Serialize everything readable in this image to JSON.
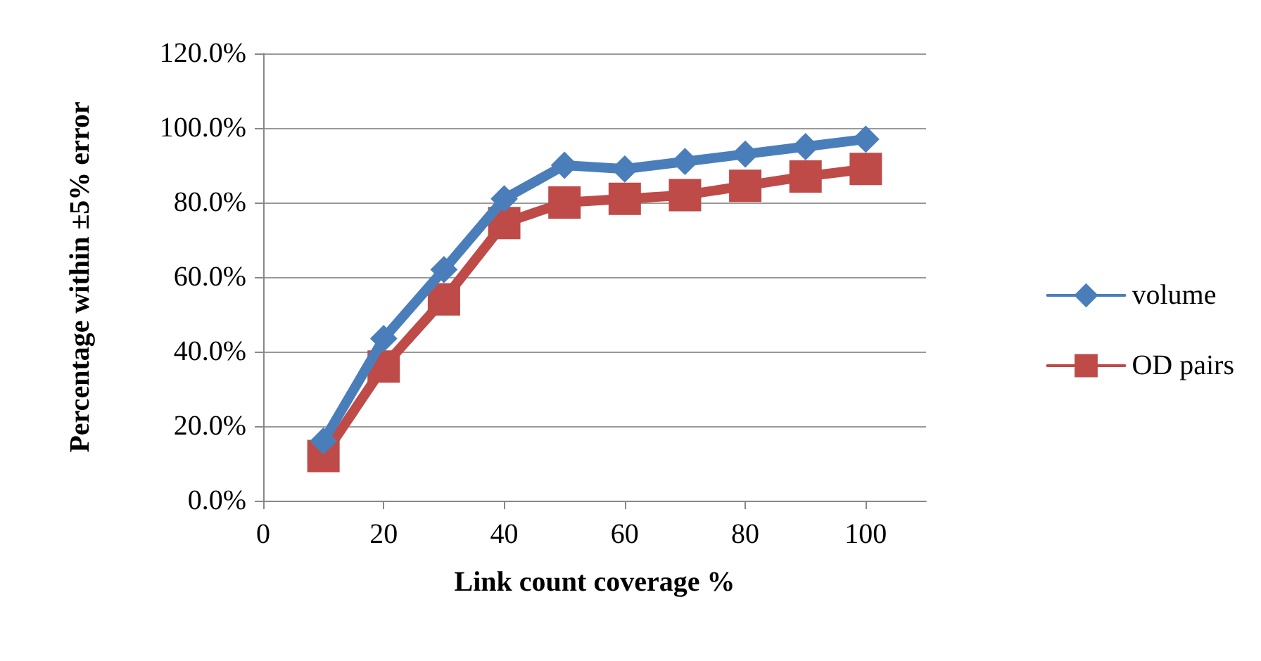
{
  "chart_data": {
    "type": "line",
    "xlabel": "Link count coverage %",
    "ylabel": "Percentage within ±5% error",
    "x": [
      10,
      20,
      30,
      40,
      50,
      60,
      70,
      80,
      90,
      100
    ],
    "series": [
      {
        "name": "volume",
        "color": "#4a7ebb",
        "marker": "diamond",
        "values": [
          16,
          43.5,
          62,
          81,
          90,
          89,
          91,
          93,
          95,
          97
        ]
      },
      {
        "name": "OD pairs",
        "color": "#be4b48",
        "marker": "square",
        "values": [
          12,
          36,
          54,
          74.5,
          80,
          81,
          82,
          84.5,
          87,
          89
        ]
      }
    ],
    "xlim": [
      0,
      110
    ],
    "xticks": [
      0,
      20,
      40,
      60,
      80,
      100
    ],
    "ylim": [
      0,
      120
    ],
    "yticks": [
      {
        "value": 0,
        "label": "0.0%"
      },
      {
        "value": 20,
        "label": "20.0%"
      },
      {
        "value": 40,
        "label": "40.0%"
      },
      {
        "value": 60,
        "label": "60.0%"
      },
      {
        "value": 80,
        "label": "80.0%"
      },
      {
        "value": 100,
        "label": "100.0%"
      },
      {
        "value": 120,
        "label": "120.0%"
      }
    ],
    "grid": "y",
    "legend": "right"
  }
}
